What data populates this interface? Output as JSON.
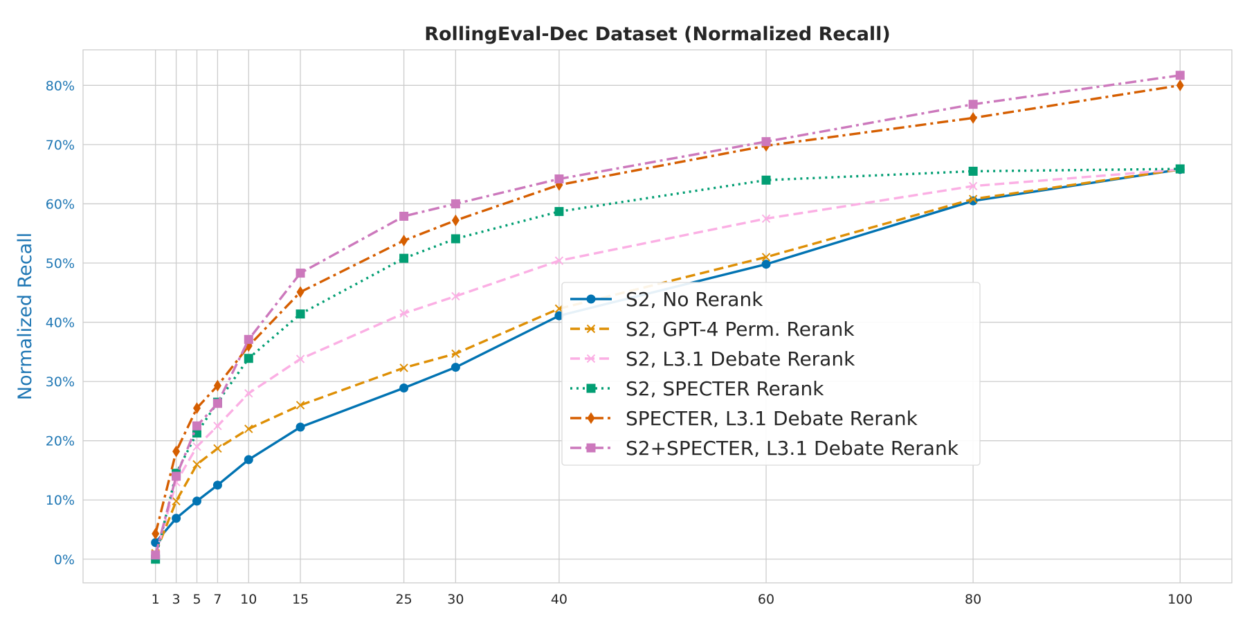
{
  "chart_data": {
    "type": "line",
    "title": "RollingEval-Dec Dataset (Normalized Recall)",
    "xlabel": "",
    "ylabel": "Normalized Recall",
    "x": [
      1,
      3,
      5,
      7,
      10,
      15,
      25,
      30,
      40,
      60,
      80,
      100
    ],
    "xticks": [
      "1",
      "3",
      "5",
      "7",
      "10",
      "15",
      "25",
      "30",
      "40",
      "60",
      "80",
      "100"
    ],
    "yticks": [
      "0%",
      "10%",
      "20%",
      "30%",
      "40%",
      "50%",
      "60%",
      "70%",
      "80%"
    ],
    "ytick_values": [
      0,
      10,
      20,
      30,
      40,
      50,
      60,
      70,
      80
    ],
    "xlim": [
      -6,
      105
    ],
    "ylim": [
      -4,
      86
    ],
    "grid": true,
    "legend_position": "center-right",
    "series": [
      {
        "name": "S2, No Rerank",
        "color": "#0173b2",
        "dash": "solid",
        "marker": "circle",
        "values": [
          2.8,
          6.9,
          9.8,
          12.5,
          16.8,
          22.3,
          28.9,
          32.4,
          41.1,
          49.8,
          60.5,
          65.8
        ]
      },
      {
        "name": "S2, GPT-4 Perm. Rerank",
        "color": "#de8f05",
        "dash": "dashed",
        "marker": "x",
        "values": [
          1.0,
          9.8,
          16.0,
          18.7,
          22.0,
          26.0,
          32.3,
          34.7,
          42.3,
          51.0,
          60.8,
          65.8
        ]
      },
      {
        "name": "S2, L3.1 Debate Rerank",
        "color": "#fbafe4",
        "dash": "dashed",
        "marker": "x",
        "values": [
          0.5,
          13.0,
          19.0,
          22.5,
          28.0,
          33.8,
          41.5,
          44.4,
          50.4,
          57.5,
          63.0,
          65.8
        ]
      },
      {
        "name": "S2, SPECTER Rerank",
        "color": "#029e73",
        "dash": "dotted",
        "marker": "square",
        "values": [
          0.0,
          14.5,
          21.3,
          26.5,
          33.9,
          41.4,
          50.8,
          54.1,
          58.7,
          64.0,
          65.5,
          65.9
        ]
      },
      {
        "name": "SPECTER, L3.1 Debate Rerank",
        "color": "#d55e00",
        "dash": "dashdot",
        "marker": "diamond",
        "values": [
          4.3,
          18.2,
          25.5,
          29.3,
          36.0,
          45.1,
          53.8,
          57.2,
          63.2,
          69.8,
          74.5,
          80.0
        ]
      },
      {
        "name": "S2+SPECTER, L3.1 Debate Rerank",
        "color": "#cc78bc",
        "dash": "dashdot",
        "marker": "square",
        "values": [
          0.7,
          14.0,
          22.5,
          26.3,
          37.1,
          48.3,
          57.9,
          60.0,
          64.2,
          70.5,
          76.8,
          81.7
        ]
      }
    ]
  }
}
